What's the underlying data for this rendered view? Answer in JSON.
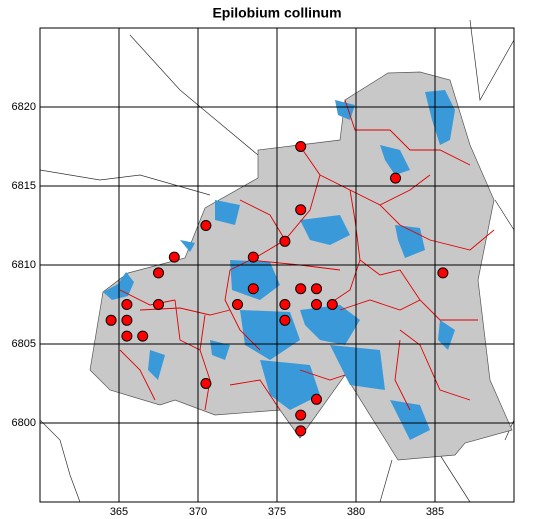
{
  "chart_data": {
    "type": "scatter",
    "title": "Epilobium collinum",
    "x": [
      376.5,
      382.5,
      376.5,
      370.5,
      375.5,
      368.5,
      373.5,
      367.5,
      385.5,
      376.5,
      377.5,
      373.5,
      365.5,
      367.5,
      372.5,
      375.5,
      377.5,
      378.5,
      364.5,
      365.5,
      375.5,
      365.5,
      366.5,
      370.5,
      377.5,
      376.5,
      376.5
    ],
    "values": [
      6817.5,
      6815.5,
      6813.5,
      6812.5,
      6811.5,
      6810.5,
      6810.5,
      6809.5,
      6809.5,
      6808.5,
      6808.5,
      6808.5,
      6807.5,
      6807.5,
      6807.5,
      6807.5,
      6807.5,
      6807.5,
      6806.5,
      6806.5,
      6806.5,
      6805.5,
      6805.5,
      6802.5,
      6801.5,
      6800.5,
      6799.5
    ],
    "color": "#ff0000",
    "xlim": [
      360,
      390
    ],
    "xticks": [
      365,
      370,
      375,
      380,
      385
    ],
    "ylim": [
      6795,
      6825
    ],
    "yticks": [
      6800,
      6805,
      6810,
      6815,
      6820
    ],
    "grid": true
  }
}
